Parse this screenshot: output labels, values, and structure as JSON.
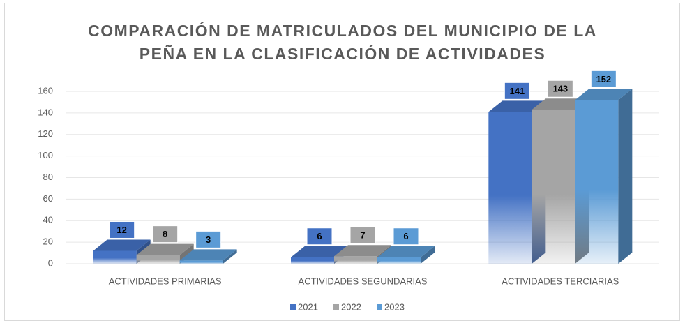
{
  "chart_data": {
    "type": "bar3d",
    "title": "COMPARACIÓN DE MATRICULADOS DEL MUNICIPIO DE LA PEÑA EN LA CLASIFICACIÓN DE ACTIVIDADES",
    "categories": [
      "ACTIVIDADES PRIMARIAS",
      "ACTIVIDADES SEGUNDARIAS",
      "ACTIVIDADES TERCIARIAS"
    ],
    "series": [
      {
        "name": "2021",
        "color": "#4472c4",
        "values": [
          12,
          6,
          141
        ]
      },
      {
        "name": "2022",
        "color": "#a5a5a5",
        "values": [
          8,
          7,
          143
        ]
      },
      {
        "name": "2023",
        "color": "#5b9bd5",
        "values": [
          3,
          6,
          152
        ]
      }
    ],
    "ylim": [
      0,
      160
    ],
    "yticks": [
      0,
      20,
      40,
      60,
      80,
      100,
      120,
      140,
      160
    ],
    "grid": true,
    "legend": "bottom"
  }
}
